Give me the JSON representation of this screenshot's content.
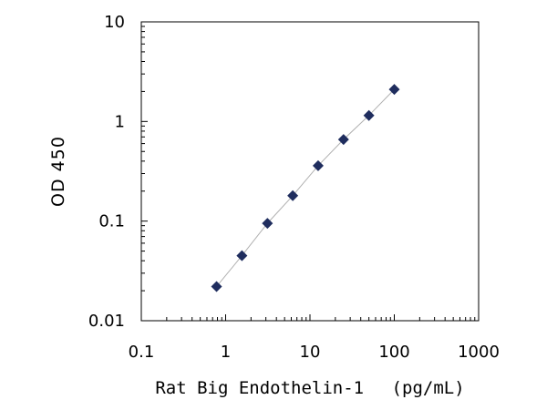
{
  "chart_data": {
    "type": "scatter",
    "title": "",
    "xlabel": "Rat Big Endothelin-1　 (pg/mL)",
    "ylabel": "OD 450",
    "x_scale": "log",
    "y_scale": "log",
    "xlim": [
      0.1,
      1000
    ],
    "ylim": [
      0.01,
      10
    ],
    "x_ticks": [
      "0.1",
      "1",
      "10",
      "100",
      "1000"
    ],
    "y_ticks": [
      "0.01",
      "0.1",
      "1",
      "10"
    ],
    "grid": false,
    "legend": "none",
    "marker": "diamond",
    "marker_color": "#1f2d5e",
    "line_color": "#b0b0b0",
    "series": [
      {
        "x": [
          0.78,
          1.56,
          3.13,
          6.25,
          12.5,
          25,
          50,
          100
        ],
        "y": [
          0.022,
          0.045,
          0.095,
          0.18,
          0.36,
          0.66,
          1.15,
          2.1
        ]
      }
    ]
  }
}
